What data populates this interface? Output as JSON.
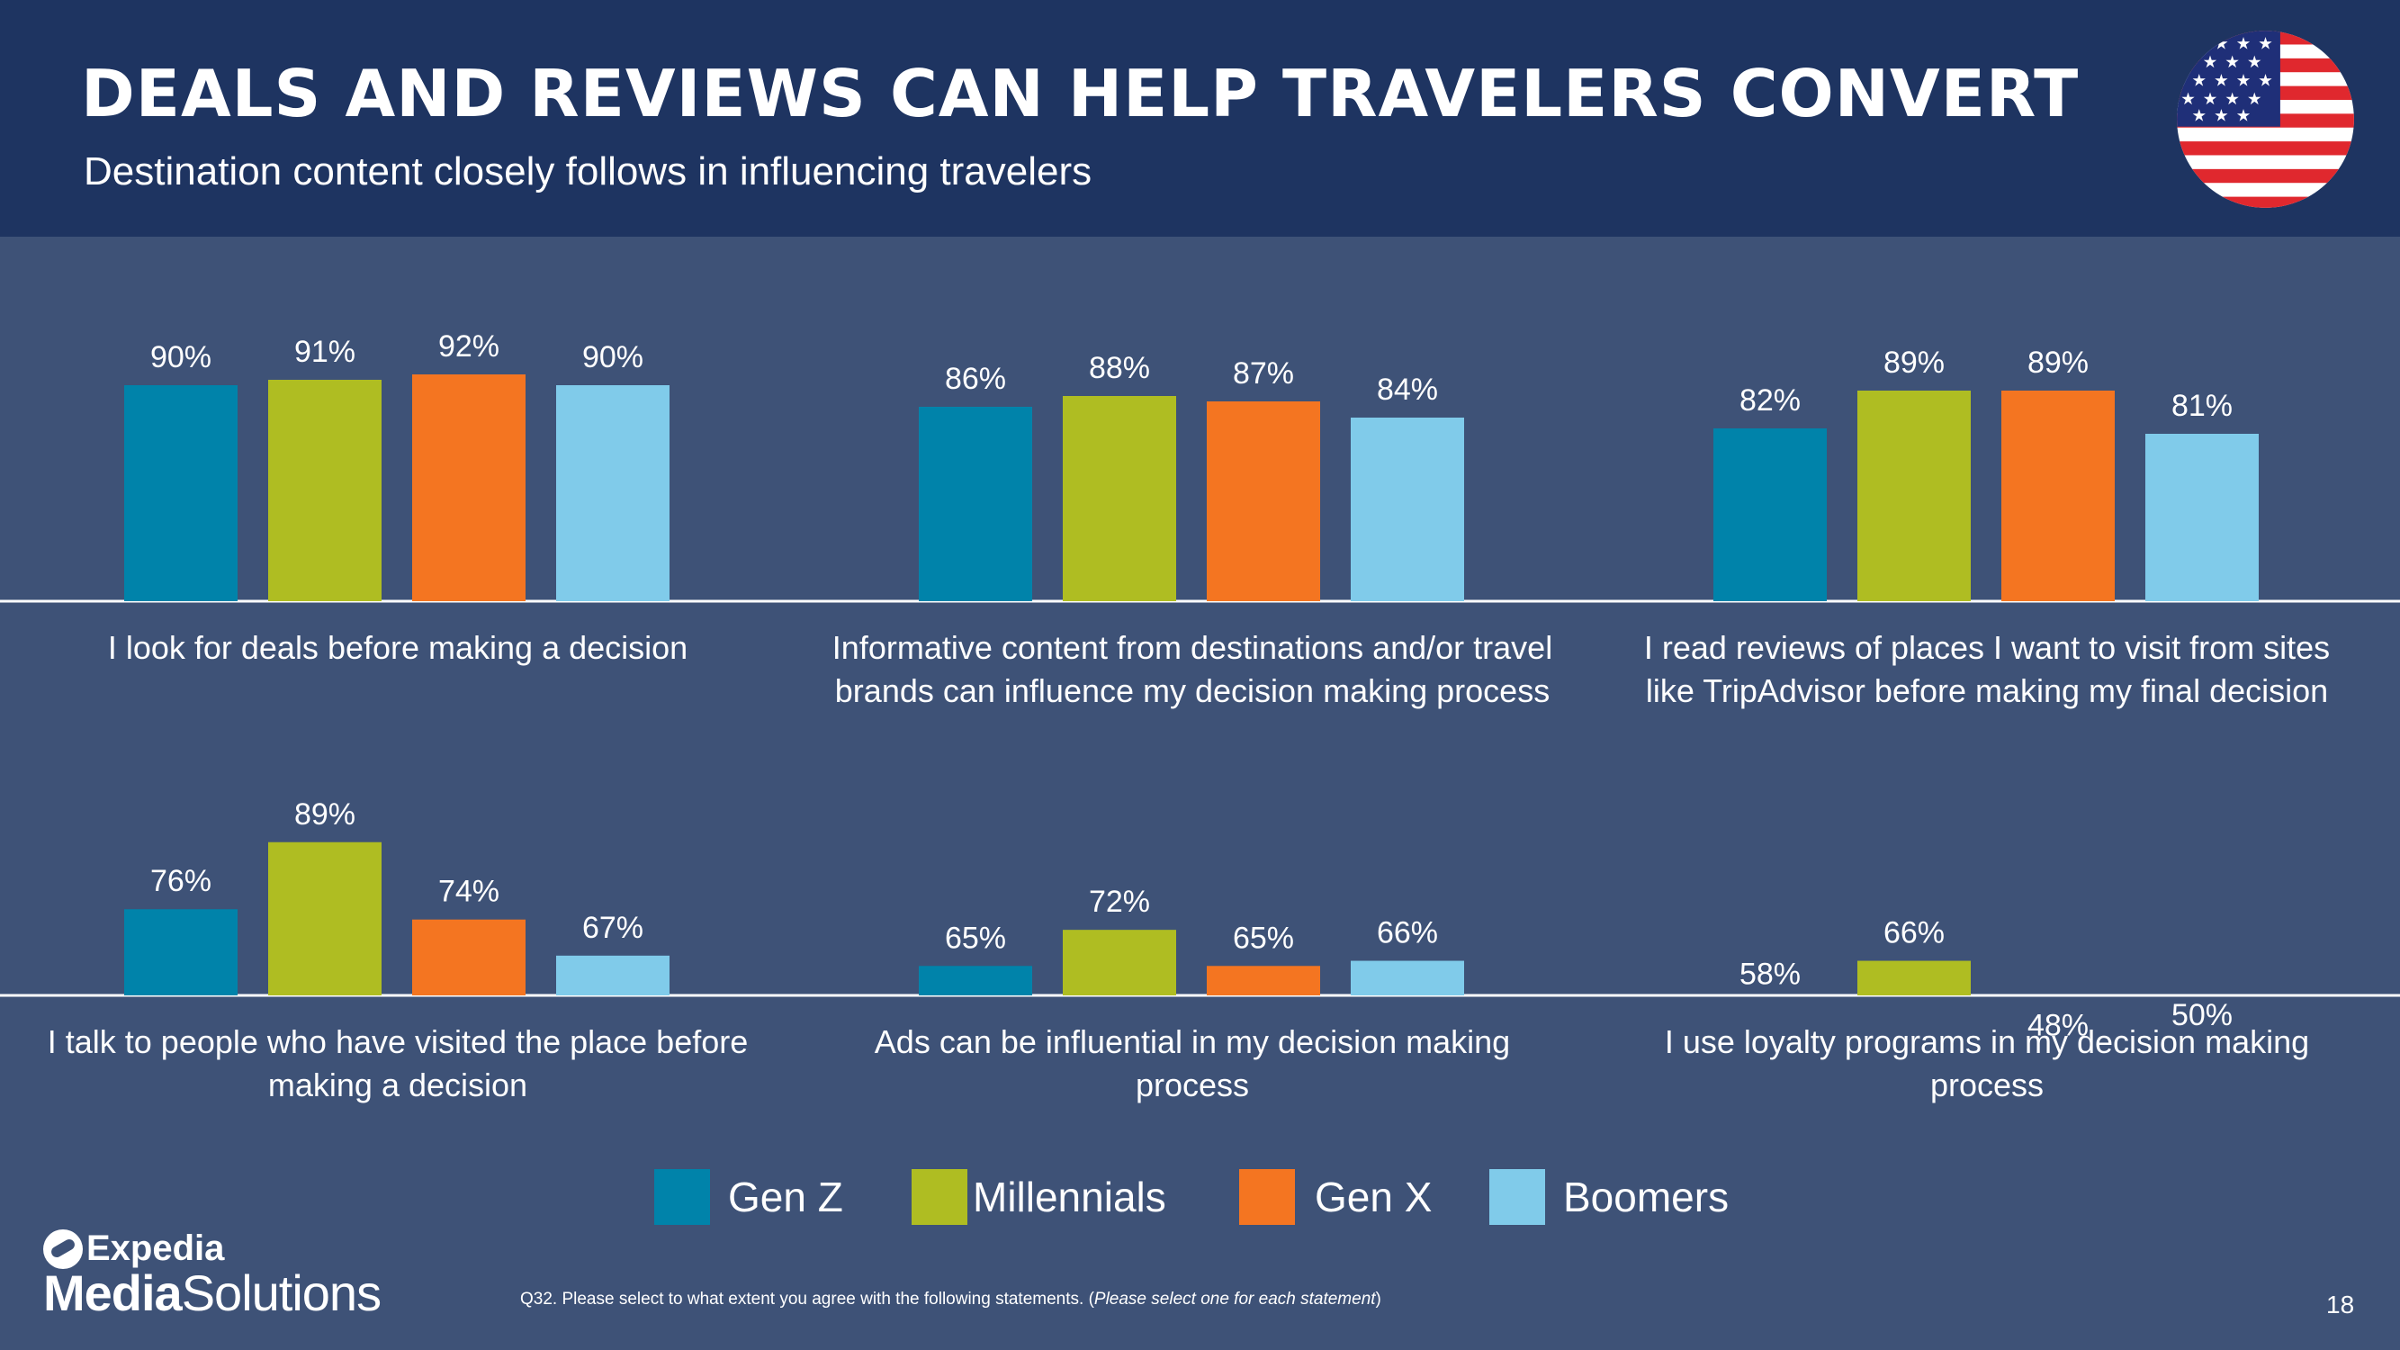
{
  "header": {
    "title": "DEALS AND REVIEWS CAN HELP TRAVELERS CONVERT",
    "subtitle": "Destination content closely follows in influencing travelers"
  },
  "flag_icon": "us-flag-icon",
  "colors": {
    "background": "#3e5277",
    "header": "#1e3461",
    "gen_z": "#0083aa",
    "millennials": "#afbd22",
    "gen_x": "#f47521",
    "boomers": "#80cbea"
  },
  "chart_data": {
    "type": "bar",
    "value_format": "percent",
    "series_names": [
      "Gen Z",
      "Millennials",
      "Gen X",
      "Boomers"
    ],
    "panels": [
      {
        "category": "I look for deals before making a decision",
        "values": [
          90,
          91,
          92,
          90
        ]
      },
      {
        "category": "Informative content from destinations and/or travel brands can influence my decision making process",
        "values": [
          86,
          88,
          87,
          84
        ]
      },
      {
        "category": "I read reviews of places I want to visit from sites like TripAdvisor before making my final decision",
        "values": [
          82,
          89,
          89,
          81
        ]
      },
      {
        "category": "I talk to people who have visited the place before making a decision",
        "values": [
          76,
          89,
          74,
          67
        ]
      },
      {
        "category": "Ads can be influential in my decision making process",
        "values": [
          65,
          72,
          65,
          66
        ]
      },
      {
        "category": "I use loyalty programs in my decision making process",
        "values": [
          58,
          66,
          48,
          50
        ]
      }
    ]
  },
  "legend": [
    {
      "label": "Gen Z",
      "color": "#0083aa"
    },
    {
      "label": "Millennials",
      "color": "#afbd22"
    },
    {
      "label": "Gen X",
      "color": "#f47521"
    },
    {
      "label": "Boomers",
      "color": "#80cbea"
    }
  ],
  "footer": {
    "footnote_main": "Q32. Please select to what extent you agree with the following statements. (",
    "footnote_italic": "Please select one for each statement",
    "footnote_end": ")",
    "page_number": "18",
    "logo_top": "Expedia",
    "logo_bottom_bold": "Media",
    "logo_bottom_regular": "Solutions"
  }
}
